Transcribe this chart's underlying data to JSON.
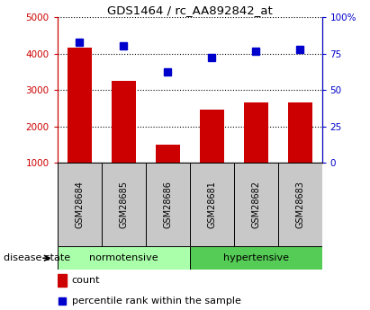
{
  "title": "GDS1464 / rc_AA892842_at",
  "categories": [
    "GSM28684",
    "GSM28685",
    "GSM28686",
    "GSM28681",
    "GSM28682",
    "GSM28683"
  ],
  "bar_values": [
    4150,
    3250,
    1500,
    2450,
    2650,
    2650
  ],
  "blue_markers": [
    4300,
    4200,
    3500,
    3900,
    4050,
    4100
  ],
  "bar_color": "#cc0000",
  "marker_color": "#0000cc",
  "left_ylim": [
    1000,
    5000
  ],
  "left_yticks": [
    1000,
    2000,
    3000,
    4000,
    5000
  ],
  "right_ylim": [
    0,
    100
  ],
  "right_yticks": [
    0,
    25,
    50,
    75,
    100
  ],
  "right_yticklabels": [
    "0",
    "25",
    "50",
    "75",
    "100%"
  ],
  "disease_state_label": "disease state",
  "normotensive_label": "normotensive",
  "hypertensive_label": "hypertensive",
  "legend_count": "count",
  "legend_percentile": "percentile rank within the sample",
  "gray_bg": "#c8c8c8",
  "light_green": "#aaffaa",
  "green": "#55cc55"
}
